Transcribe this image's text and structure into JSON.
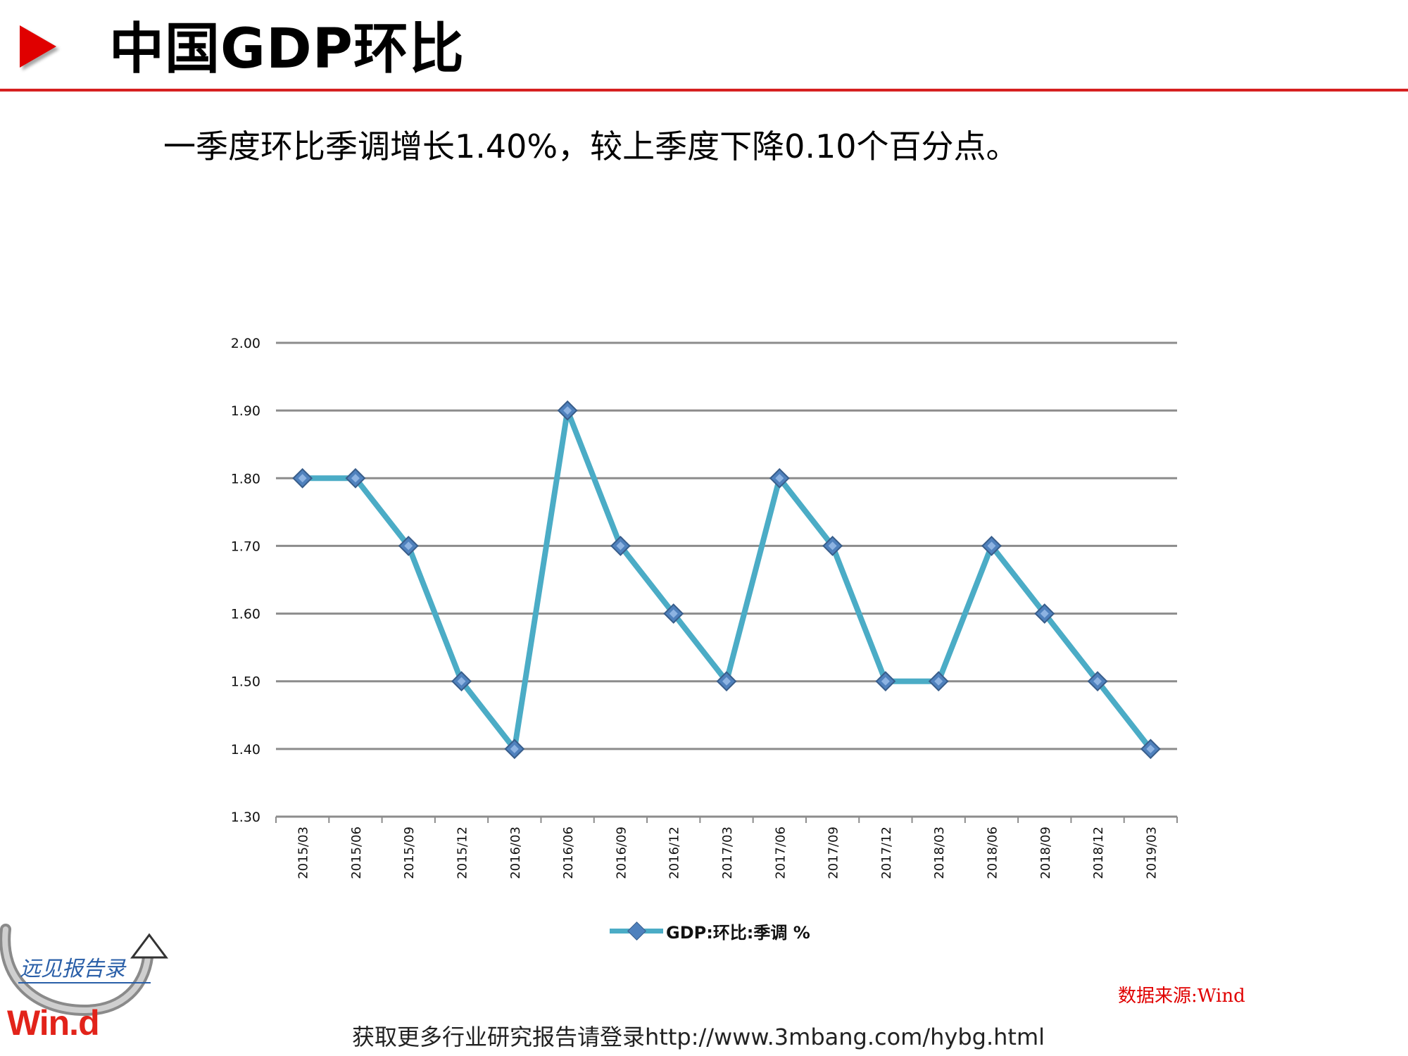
{
  "header": {
    "title": "中国GDP环比",
    "subtitle": "一季度环比季调增长1.40%，较上季度下降0.10个百分点。"
  },
  "colors": {
    "accent": "#d62020",
    "series_line": "#4bacc6",
    "marker": "#4f81bd",
    "grid": "#8c8c8c"
  },
  "chart_data": {
    "type": "line",
    "title": "",
    "xlabel": "",
    "ylabel": "",
    "categories": [
      "2015/03",
      "2015/06",
      "2015/09",
      "2015/12",
      "2016/03",
      "2016/06",
      "2016/09",
      "2016/12",
      "2017/03",
      "2017/06",
      "2017/09",
      "2017/12",
      "2018/03",
      "2018/06",
      "2018/09",
      "2018/12",
      "2019/03"
    ],
    "series": [
      {
        "name": "GDP:环比:季调 %",
        "values": [
          1.8,
          1.8,
          1.7,
          1.5,
          1.4,
          1.9,
          1.7,
          1.6,
          1.5,
          1.8,
          1.7,
          1.5,
          1.5,
          1.7,
          1.6,
          1.5,
          1.4
        ]
      }
    ],
    "ylim": [
      1.3,
      2.0
    ],
    "yticks": [
      "1.30",
      "1.40",
      "1.50",
      "1.60",
      "1.70",
      "1.80",
      "1.90",
      "2.00"
    ],
    "grid": true,
    "legend_position": "bottom",
    "marker": "diamond"
  },
  "logo": {
    "brand": "Win.d",
    "tagline": "远见报告录",
    "icon": "curved-arrow-icon"
  },
  "source": "数据来源:Wind",
  "footer": "获取更多行业研究报告请登录http://www.3mbang.com/hybg.html"
}
